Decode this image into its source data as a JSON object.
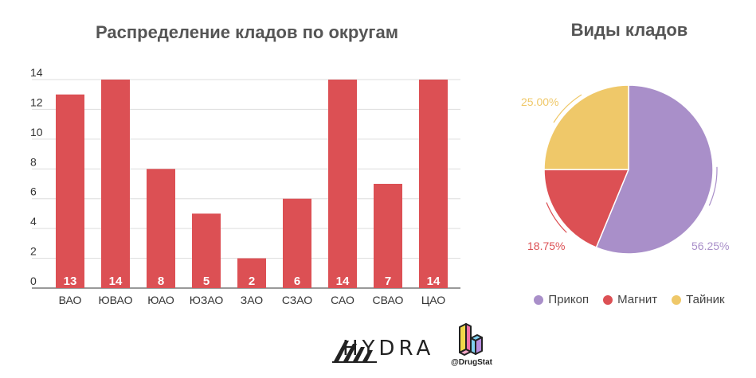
{
  "chart_data": [
    {
      "type": "bar",
      "title": "Распределение кладов по округам",
      "categories": [
        "ВАО",
        "ЮВАО",
        "ЮАО",
        "ЮЗАО",
        "ЗАО",
        "СЗАО",
        "САО",
        "СВАО",
        "ЦАО"
      ],
      "values": [
        13,
        14,
        8,
        5,
        2,
        6,
        14,
        7,
        14
      ],
      "data_labels": [
        "13",
        "14",
        "8",
        "5",
        "2",
        "6",
        "14",
        "7",
        "14"
      ],
      "ylim": [
        0,
        14
      ],
      "yticks": [
        0,
        2,
        4,
        6,
        8,
        10,
        12,
        14
      ],
      "grid": true,
      "color": "#dc5054"
    },
    {
      "type": "pie",
      "title": "Виды кладов",
      "labels": [
        "Прикоп",
        "Магнит",
        "Тайник"
      ],
      "values": [
        56.25,
        18.75,
        25.0
      ],
      "value_labels": [
        "56.25%",
        "18.75%",
        "25.00%"
      ],
      "colors": [
        "#a98fc9",
        "#dc5054",
        "#efc869"
      ],
      "legend": "bottom"
    }
  ],
  "branding": {
    "hydra_text": "HYDRA",
    "drugstat_handle": "@DrugStat"
  }
}
